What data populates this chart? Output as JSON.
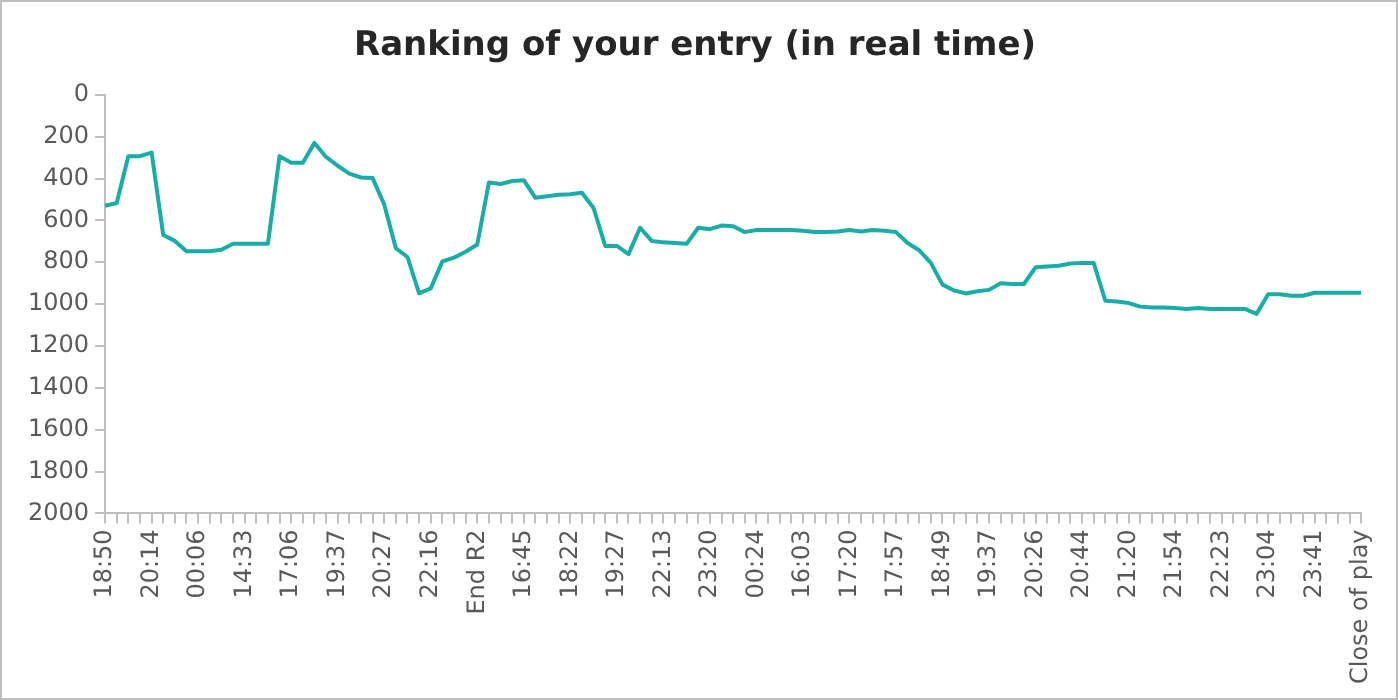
{
  "chart_data": {
    "type": "line",
    "title": "Ranking of your entry (in real time)",
    "categories": [
      "18:50",
      null,
      null,
      null,
      "20:14",
      null,
      null,
      null,
      "00:06",
      null,
      null,
      null,
      "14:33",
      null,
      null,
      null,
      "17:06",
      null,
      null,
      null,
      "19:37",
      null,
      null,
      null,
      "20:27",
      null,
      null,
      null,
      "22:16",
      null,
      null,
      null,
      "End R2",
      null,
      null,
      null,
      "16:45",
      null,
      null,
      null,
      "18:22",
      null,
      null,
      null,
      "19:27",
      null,
      null,
      null,
      "22:13",
      null,
      null,
      null,
      "23:20",
      null,
      null,
      null,
      "00:24",
      null,
      null,
      null,
      "16:03",
      null,
      null,
      null,
      "17:20",
      null,
      null,
      null,
      "17:57",
      null,
      null,
      null,
      "18:49",
      null,
      null,
      null,
      "19:37",
      null,
      null,
      null,
      "20:26",
      null,
      null,
      null,
      "20:44",
      null,
      null,
      null,
      "21:20",
      null,
      null,
      null,
      "21:54",
      null,
      null,
      null,
      "22:23",
      null,
      null,
      null,
      "23:04",
      null,
      null,
      null,
      "23:41",
      null,
      null,
      null,
      "Close of play"
    ],
    "series": [
      {
        "color": "#1aada8",
        "values": [
          530,
          517,
          293,
          293,
          276,
          670,
          698,
          747,
          747,
          747,
          740,
          712,
          712,
          712,
          712,
          293,
          325,
          325,
          230,
          297,
          339,
          377,
          395,
          398,
          524,
          733,
          775,
          949,
          925,
          796,
          778,
          750,
          715,
          419,
          426,
          412,
          408,
          492,
          485,
          478,
          475,
          468,
          541,
          722,
          722,
          761,
          635,
          698,
          705,
          708,
          712,
          635,
          642,
          625,
          628,
          656,
          646,
          646,
          646,
          646,
          649,
          656,
          656,
          653,
          646,
          653,
          646,
          649,
          656,
          708,
          743,
          803,
          907,
          935,
          949,
          939,
          932,
          900,
          904,
          904,
          824,
          820,
          817,
          806,
          803,
          803,
          984,
          988,
          995,
          1012,
          1016,
          1016,
          1019,
          1023,
          1019,
          1023,
          1023,
          1023,
          1023,
          1047,
          953,
          953,
          960,
          960,
          946,
          946,
          946,
          946,
          946
        ]
      }
    ],
    "ylim": [
      2000,
      0
    ],
    "yticks": [
      0,
      200,
      400,
      600,
      800,
      1000,
      1200,
      1400,
      1600,
      1800,
      2000
    ],
    "grid": false,
    "legend": false,
    "marker": "none",
    "line_style": "solid"
  }
}
